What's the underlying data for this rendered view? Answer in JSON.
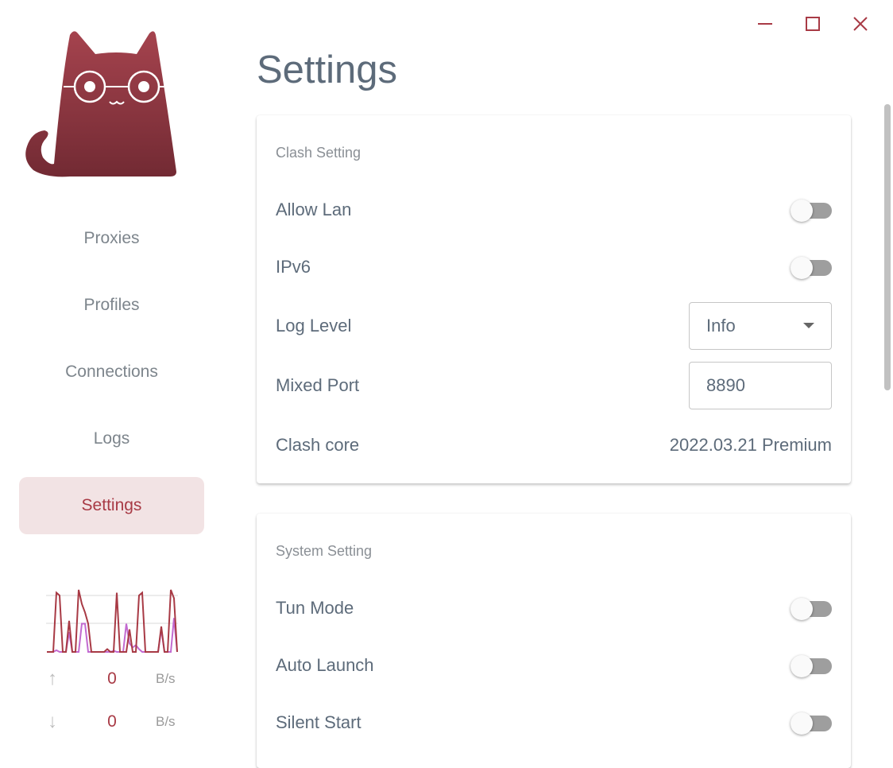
{
  "window": {
    "minimize_icon": "minimize-icon",
    "maximize_icon": "maximize-icon",
    "close_icon": "close-icon"
  },
  "sidebar": {
    "logo_icon": "cat-logo",
    "items": [
      {
        "label": "Proxies"
      },
      {
        "label": "Profiles"
      },
      {
        "label": "Connections"
      },
      {
        "label": "Logs"
      },
      {
        "label": "Settings",
        "active": true
      }
    ],
    "traffic": {
      "upload": {
        "value": "0",
        "unit": "B/s",
        "icon": "arrow-up-icon"
      },
      "download": {
        "value": "0",
        "unit": "B/s",
        "icon": "arrow-down-icon"
      }
    }
  },
  "chart_data": {
    "type": "line",
    "series": [
      {
        "values": [
          0,
          0,
          0,
          105,
          100,
          0,
          0,
          55,
          0,
          0,
          110,
          85,
          70,
          50,
          0,
          0,
          0,
          0,
          0,
          5,
          0,
          0,
          105,
          0,
          0,
          0,
          40,
          0,
          0,
          100,
          105,
          0,
          0,
          0,
          0,
          0,
          45,
          0,
          0,
          110,
          95,
          0
        ],
        "color": "#a83a45"
      },
      {
        "values": [
          0,
          0,
          0,
          3,
          0,
          0,
          0,
          35,
          0,
          0,
          0,
          50,
          50,
          0,
          0,
          0,
          0,
          0,
          0,
          0,
          0,
          2,
          0,
          0,
          0,
          50,
          15,
          8,
          12,
          5,
          0,
          0,
          0,
          0,
          0,
          0,
          40,
          0,
          0,
          0,
          60,
          0
        ],
        "color": "#c26ad0"
      }
    ],
    "grid": true
  },
  "main": {
    "title": "Settings",
    "clash": {
      "title": "Clash Setting",
      "allow_lan": {
        "label": "Allow Lan",
        "on": false
      },
      "ipv6": {
        "label": "IPv6",
        "on": false
      },
      "log_level": {
        "label": "Log Level",
        "value": "Info"
      },
      "mixed_port": {
        "label": "Mixed Port",
        "value": "8890"
      },
      "core": {
        "label": "Clash core",
        "value": "2022.03.21 Premium"
      }
    },
    "system": {
      "title": "System Setting",
      "tun": {
        "label": "Tun Mode",
        "on": false
      },
      "auto_launch": {
        "label": "Auto Launch",
        "on": false
      },
      "silent_start": {
        "label": "Silent Start",
        "on": false
      }
    }
  },
  "colors": {
    "accent": "#a83a45",
    "active_bg": "#f2e3e4",
    "text": "#5d6b7a"
  }
}
